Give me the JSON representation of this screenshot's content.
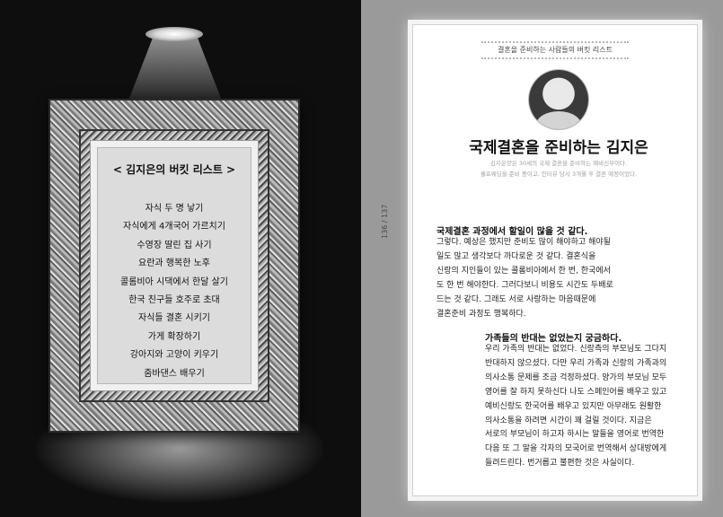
{
  "left_page": {
    "card": {
      "title": "< 김지은의 버킷 리스트 >",
      "items": [
        "자식 두 명 낳기",
        "자식에게 4개국어 가르치기",
        "수영장 딸린 집 사기",
        "요란과 행복한 노후",
        "콜롬비아 시댁에서 한달 살기",
        "한국 친구들 호주로 초대",
        "자식들 결혼 시키기",
        "가게 확장하기",
        "강아지와 고양이 키우기",
        "줌바댄스 배우기"
      ]
    }
  },
  "right_page": {
    "running_head": "결혼을 준비하는 사람들의 버킷 리스트",
    "page_number": "136 / 137",
    "article_title": "국제결혼을 준비하는 김지은",
    "intro_lines": [
      "김지은양은 30세의 국제 결혼을 준비하는 예비신부이다.",
      "웰프웨딩을 준비 중이고, 인터뷰 당시 3개월 후 결혼 예정이었다."
    ],
    "q1": "국제결혼 과정에서 할일이 많을 것 같다.",
    "a1_lines": [
      "그렇다. 예상은 했지만 준비도 많이 해야하고 해야될",
      "일도 많고 생각보다 까다로운 것 같다. 결혼식을",
      "신랑의 지인들이 있는 콜롬비아에서 한 번, 한국에서",
      "도 한 번 해야한다. 그러다보니 비용도 시간도 두배로",
      "드는 것 같다. 그래도 서로 사랑하는 마음때문에",
      "결혼준비 과정도 행복하다."
    ],
    "q2": "가족들의 반대는 없었는지 궁금하다.",
    "a2_lines": [
      "우리 가족의 반대는 없었다. 신랑측의 부모님도 그다지",
      "반대하지 않으셨다. 다만 우리 가족과 신랑의 가족과의",
      "의사소통 문제를 조금 걱정하셨다. 양가의 부모님 모두",
      "영어를 잘 하지 못하신다 나도 스페인어를 배우고 있고",
      "예비신랑도 한국어를 배우고 있지만 아무래도 원활한",
      "의사소통을 하려면 시간이 꽤 걸릴 것이다. 지금은",
      "서로의 부모님이 하고자 하시는 말들을 영어로 번역한",
      "다음 또 그 말을 각자의 모국어로 번역해서 상대방에게",
      "들려드린다. 번거롭고 불편한 것은 사실이다."
    ]
  }
}
